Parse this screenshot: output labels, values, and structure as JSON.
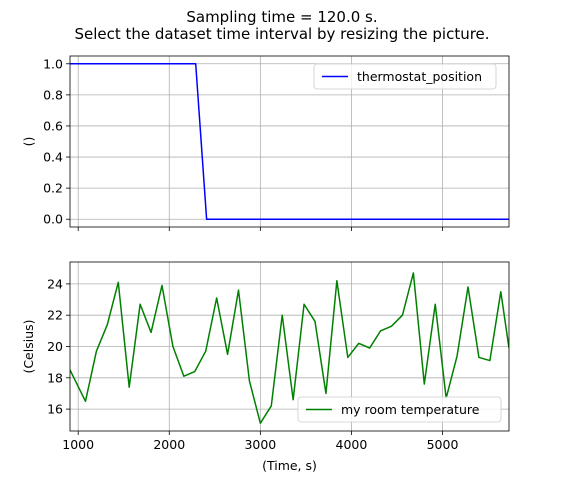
{
  "figure": {
    "title_line1": "Sampling time = 120.0 s.",
    "title_line2": "Select the dataset time interval by resizing the picture."
  },
  "chart_data": [
    {
      "type": "line",
      "ylabel": "()",
      "xlabel": "",
      "xlim": [
        910,
        5730
      ],
      "ylim": [
        -0.05,
        1.05
      ],
      "xticks": [
        1000,
        2000,
        3000,
        4000,
        5000
      ],
      "yticks": [
        0.0,
        0.2,
        0.4,
        0.6,
        0.8,
        1.0
      ],
      "ytick_labels": [
        "0.0",
        "0.2",
        "0.4",
        "0.6",
        "0.8",
        "1.0"
      ],
      "show_xtick_labels": false,
      "grid": true,
      "legend": "upper-right",
      "series": [
        {
          "name": "thermostat_position",
          "color": "#0000ff",
          "x": [
            910,
            2290,
            2410,
            5730
          ],
          "y": [
            1.0,
            1.0,
            0.0,
            0.0
          ]
        }
      ]
    },
    {
      "type": "line",
      "ylabel": "(Celsius)",
      "xlabel": "(Time, s)",
      "xlim": [
        910,
        5730
      ],
      "ylim": [
        14.6,
        25.4
      ],
      "xticks": [
        1000,
        2000,
        3000,
        4000,
        5000
      ],
      "xtick_labels": [
        "1000",
        "2000",
        "3000",
        "4000",
        "5000"
      ],
      "yticks": [
        16,
        18,
        20,
        22,
        24
      ],
      "ytick_labels": [
        "16",
        "18",
        "20",
        "22",
        "24"
      ],
      "show_xtick_labels": true,
      "grid": true,
      "legend": "lower-right",
      "series": [
        {
          "name": "my room temperature",
          "color": "#008000",
          "x": [
            910,
            1080,
            1200,
            1320,
            1440,
            1560,
            1680,
            1800,
            1920,
            2040,
            2160,
            2280,
            2400,
            2520,
            2640,
            2760,
            2880,
            3000,
            3120,
            3240,
            3360,
            3480,
            3600,
            3720,
            3840,
            3960,
            4080,
            4200,
            4320,
            4440,
            4560,
            4680,
            4800,
            4920,
            5040,
            5160,
            5280,
            5400,
            5520,
            5640,
            5730
          ],
          "y": [
            18.5,
            16.5,
            19.7,
            21.4,
            24.1,
            17.4,
            22.7,
            20.9,
            23.9,
            20.0,
            18.1,
            18.4,
            19.7,
            23.1,
            19.5,
            23.6,
            17.8,
            15.1,
            16.2,
            22.0,
            16.6,
            22.7,
            21.6,
            17.0,
            24.2,
            19.3,
            20.2,
            19.9,
            21.0,
            21.3,
            22.0,
            24.7,
            17.6,
            22.7,
            16.7,
            19.4,
            23.8,
            19.3,
            19.1,
            23.5,
            19.9
          ]
        }
      ]
    }
  ]
}
